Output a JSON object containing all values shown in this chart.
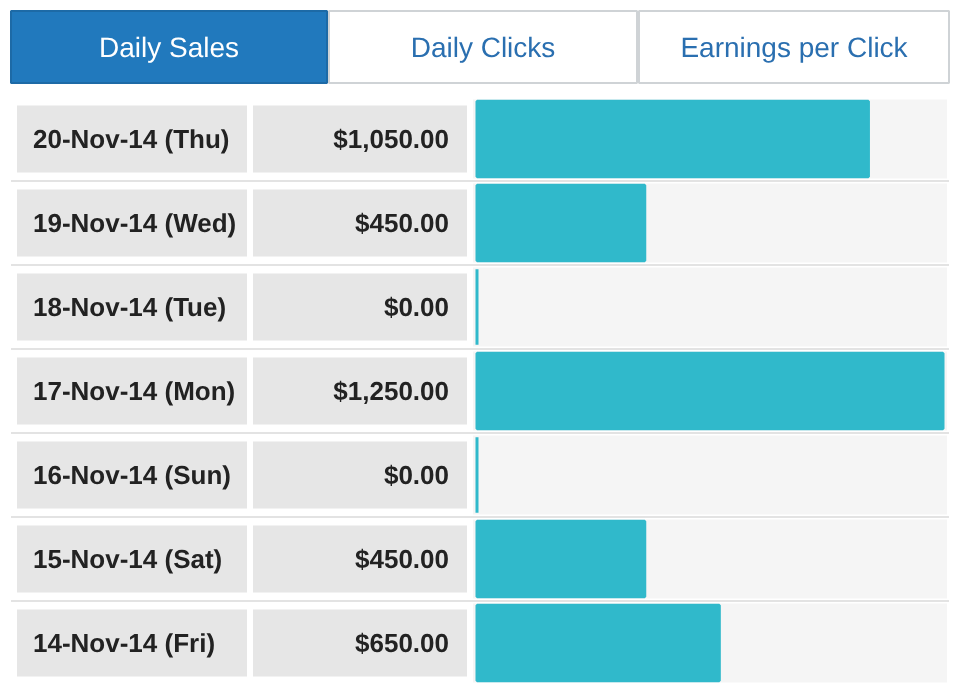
{
  "chart_data": {
    "type": "bar",
    "orientation": "horizontal",
    "title": "Daily Sales",
    "annotations": [
      "Daily Clicks",
      "Earnings per Click"
    ],
    "categories": [
      "20-Nov-14 (Thu)",
      "19-Nov-14 (Wed)",
      "18-Nov-14 (Tue)",
      "17-Nov-14 (Mon)",
      "16-Nov-14 (Sun)",
      "15-Nov-14 (Sat)",
      "14-Nov-14 (Fri)"
    ],
    "values": [
      1050,
      450,
      0,
      1250,
      0,
      450,
      650
    ],
    "value_labels": [
      "$1,050.00",
      "$450.00",
      "$0.00",
      "$1,250.00",
      "$0.00",
      "$450.00",
      "$650.00"
    ],
    "color": "#30b9cb"
  }
}
